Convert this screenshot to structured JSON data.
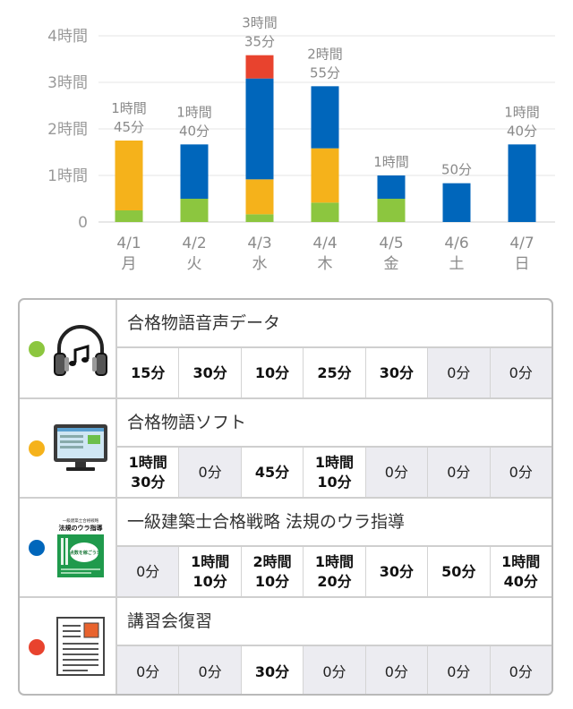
{
  "chart_data": {
    "type": "bar",
    "stacked": true,
    "categories": [
      "4/1",
      "4/2",
      "4/3",
      "4/4",
      "4/5",
      "4/6",
      "4/7"
    ],
    "weekdays": [
      "月",
      "火",
      "水",
      "木",
      "金",
      "土",
      "日"
    ],
    "ytick_labels": [
      "0",
      "1時間",
      "2時間",
      "3時間",
      "4時間"
    ],
    "ylim": [
      0,
      240
    ],
    "yunit": "minutes",
    "grid": true,
    "series": [
      {
        "color": "#8cc63f",
        "values": [
          15,
          30,
          10,
          25,
          30,
          0,
          0
        ]
      },
      {
        "color": "#f5b21b",
        "values": [
          90,
          0,
          45,
          70,
          0,
          0,
          0
        ]
      },
      {
        "color": "#0066bb",
        "values": [
          0,
          70,
          130,
          80,
          30,
          50,
          100
        ]
      },
      {
        "color": "#e8432e",
        "values": [
          0,
          0,
          30,
          0,
          0,
          0,
          0
        ]
      }
    ],
    "totals": [
      105,
      100,
      215,
      175,
      60,
      50,
      100
    ],
    "total_labels": [
      [
        "1時間",
        "45分"
      ],
      [
        "1時間",
        "40分"
      ],
      [
        "3時間",
        "35分"
      ],
      [
        "2時間",
        "55分"
      ],
      [
        "1時間"
      ],
      [
        "50分"
      ],
      [
        "1時間",
        "40分"
      ]
    ]
  },
  "materials": [
    {
      "name": "合格物語音声データ",
      "dot_color": "#8cc63f",
      "icon": "headphones-icon",
      "times": [
        "15分",
        "30分",
        "10分",
        "25分",
        "30分",
        "0分",
        "0分"
      ]
    },
    {
      "name": "合格物語ソフト",
      "dot_color": "#f5b21b",
      "icon": "monitor-icon",
      "times": [
        "1時間\n30分",
        "0分",
        "45分",
        "1時間\n10分",
        "0分",
        "0分",
        "0分"
      ]
    },
    {
      "name": "一級建築士合格戦略 法規のウラ指導",
      "dot_color": "#0066bb",
      "icon": "book-cover-icon",
      "book_title": "法規のウラ指導",
      "book_small": "一級建築士合格戦略",
      "book_catch": "点数を稼ごう!",
      "times": [
        "0分",
        "1時間\n10分",
        "2時間\n10分",
        "1時間\n20分",
        "30分",
        "50分",
        "1時間\n40分"
      ]
    },
    {
      "name": "講習会復習",
      "dot_color": "#e8432e",
      "icon": "document-icon",
      "times": [
        "0分",
        "0分",
        "30分",
        "0分",
        "0分",
        "0分",
        "0分"
      ]
    }
  ]
}
